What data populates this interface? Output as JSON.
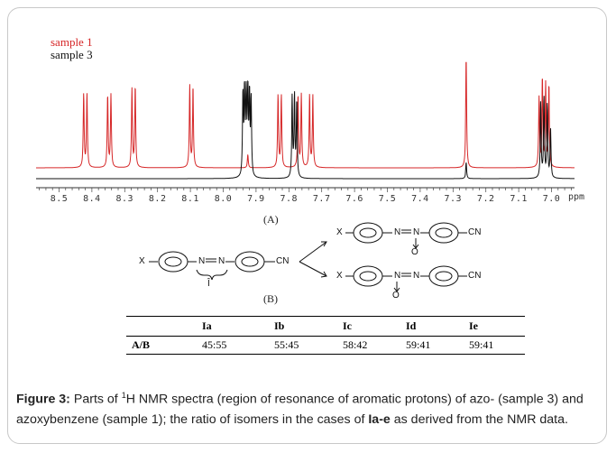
{
  "legend": [
    {
      "label": "sample 1",
      "color": "#d62728"
    },
    {
      "label": "sample 3",
      "color": "#111111"
    }
  ],
  "axis": {
    "ticks": [
      "8.5",
      "8.4",
      "8.3",
      "8.2",
      "8.1",
      "8.0",
      "7.9",
      "7.8",
      "7.7",
      "7.6",
      "7.5",
      "7.4",
      "7.3",
      "7.2",
      "7.1",
      "7.0"
    ],
    "unit": "ppm",
    "reversed": true,
    "range": [
      8.57,
      6.93
    ]
  },
  "chart_data": {
    "type": "line",
    "xlabel": "ppm",
    "xlim": [
      8.57,
      6.93
    ],
    "series": [
      {
        "name": "sample 1",
        "color": "#d62728",
        "peaks": [
          {
            "ppm": 8.425,
            "height": 0.66
          },
          {
            "ppm": 8.415,
            "height": 0.66
          },
          {
            "ppm": 8.352,
            "height": 0.65
          },
          {
            "ppm": 8.342,
            "height": 0.65
          },
          {
            "ppm": 8.278,
            "height": 0.7
          },
          {
            "ppm": 8.268,
            "height": 0.73
          },
          {
            "ppm": 8.102,
            "height": 0.73
          },
          {
            "ppm": 8.092,
            "height": 0.73
          },
          {
            "ppm": 7.925,
            "height": 0.12
          },
          {
            "ppm": 7.833,
            "height": 0.65
          },
          {
            "ppm": 7.823,
            "height": 0.65
          },
          {
            "ppm": 7.772,
            "height": 0.65
          },
          {
            "ppm": 7.762,
            "height": 0.65
          },
          {
            "ppm": 7.737,
            "height": 0.65
          },
          {
            "ppm": 7.727,
            "height": 0.65
          },
          {
            "ppm": 7.26,
            "height": 1.0
          },
          {
            "ppm": 7.038,
            "height": 0.62
          },
          {
            "ppm": 7.028,
            "height": 0.8
          },
          {
            "ppm": 7.018,
            "height": 0.74
          },
          {
            "ppm": 7.008,
            "height": 0.74
          }
        ]
      },
      {
        "name": "sample 3",
        "color": "#111111",
        "peaks": [
          {
            "ppm": 7.94,
            "height": 0.83
          },
          {
            "ppm": 7.935,
            "height": 0.9
          },
          {
            "ppm": 7.93,
            "height": 0.84
          },
          {
            "ppm": 7.925,
            "height": 0.9
          },
          {
            "ppm": 7.92,
            "height": 0.8
          },
          {
            "ppm": 7.915,
            "height": 0.78
          },
          {
            "ppm": 7.79,
            "height": 0.82
          },
          {
            "ppm": 7.783,
            "height": 0.83
          },
          {
            "ppm": 7.776,
            "height": 0.78
          },
          {
            "ppm": 7.26,
            "height": 0.17
          },
          {
            "ppm": 7.033,
            "height": 0.78
          },
          {
            "ppm": 7.023,
            "height": 0.82
          },
          {
            "ppm": 7.013,
            "height": 0.75
          },
          {
            "ppm": 7.003,
            "height": 0.5
          }
        ]
      }
    ]
  },
  "panel_labels": {
    "a": "(A)",
    "b": "(B)"
  },
  "scheme": {
    "x": "X",
    "cn": "CN",
    "o": "O",
    "brace_label": "Î"
  },
  "table": {
    "headers": [
      "",
      "Ia",
      "Ib",
      "Ic",
      "Id",
      "Ie"
    ],
    "row_label": "A/B",
    "values": [
      "45:55",
      "55:45",
      "58:42",
      "59:41",
      "59:41"
    ]
  },
  "caption": {
    "label": "Figure 3:",
    "part1": " Parts of ",
    "sup": "1",
    "part2": "H NMR spectra (region of resonance of aromatic protons) of azo- (sample 3) and azoxybenzene (sample 1); the ratio of isomers in the cases of ",
    "bold": "Ia-e",
    "part3": " as derived from the NMR data."
  }
}
